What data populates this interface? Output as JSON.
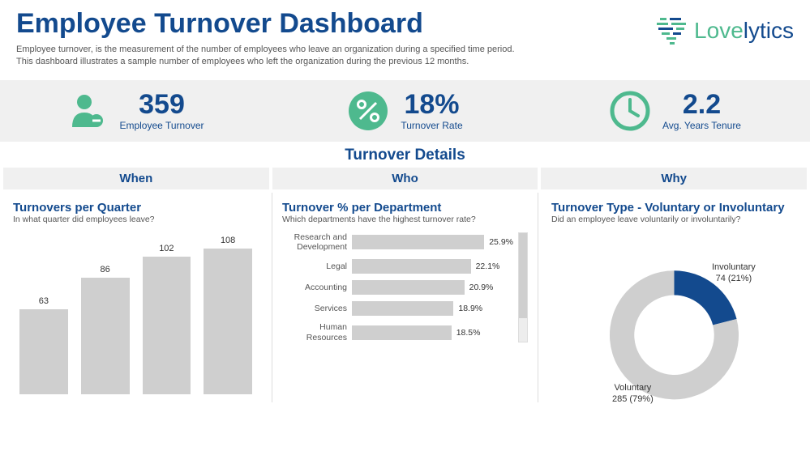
{
  "header": {
    "title": "Employee Turnover Dashboard",
    "subtitle_line1": "Employee turnover, is the measurement of the number of employees who leave an organization during a specified time period.",
    "subtitle_line2": "This dashboard illustrates a sample number of employees who left the organization during the previous 12 months.",
    "logo_part1": "Love",
    "logo_part2": "lytics"
  },
  "colors": {
    "primary": "#134a8e",
    "accent": "#4eb98e",
    "bar_fill": "#cfcfcf",
    "panel_bg": "#f0f0f0",
    "text_muted": "#555555"
  },
  "kpis": [
    {
      "id": "employee-turnover",
      "value": "359",
      "label": "Employee Turnover",
      "icon": "user-minus"
    },
    {
      "id": "turnover-rate",
      "value": "18%",
      "label": "Turnover Rate",
      "icon": "percent"
    },
    {
      "id": "avg-tenure",
      "value": "2.2",
      "label": "Avg. Years Tenure",
      "icon": "clock"
    }
  ],
  "section_title": "Turnover Details",
  "tabs": {
    "when": "When",
    "who": "Who",
    "why": "Why"
  },
  "when": {
    "title": "Turnovers per Quarter",
    "subtitle": "In what quarter did employees leave?",
    "chart": {
      "type": "bar",
      "max": 108,
      "values": [
        63,
        86,
        102,
        108
      ],
      "bar_color": "#cfcfcf",
      "label_fontsize": 11
    }
  },
  "who": {
    "title": "Turnover % per Department",
    "subtitle": "Which departments have the highest turnover rate?",
    "chart": {
      "type": "hbar",
      "max_pct": 30,
      "bar_color": "#cfcfcf",
      "rows": [
        {
          "label": "Research and Development",
          "value": 25.9,
          "text": "25.9%"
        },
        {
          "label": "Legal",
          "value": 22.1,
          "text": "22.1%"
        },
        {
          "label": "Accounting",
          "value": 20.9,
          "text": "20.9%"
        },
        {
          "label": "Services",
          "value": 18.9,
          "text": "18.9%"
        },
        {
          "label": "Human Resources",
          "value": 18.5,
          "text": "18.5%"
        }
      ]
    }
  },
  "why": {
    "title": "Turnover Type - Voluntary or Involuntary",
    "subtitle": "Did an employee leave voluntarily or involuntarily?",
    "chart": {
      "type": "donut",
      "slices": [
        {
          "label_line1": "Involuntary",
          "label_line2": "74 (21%)",
          "pct": 21,
          "color": "#134a8e"
        },
        {
          "label_line1": "Voluntary",
          "label_line2": "285 (79%)",
          "pct": 79,
          "color": "#cfcfcf"
        }
      ],
      "inner_radius": 52,
      "outer_radius": 84,
      "background": "#ffffff"
    }
  }
}
